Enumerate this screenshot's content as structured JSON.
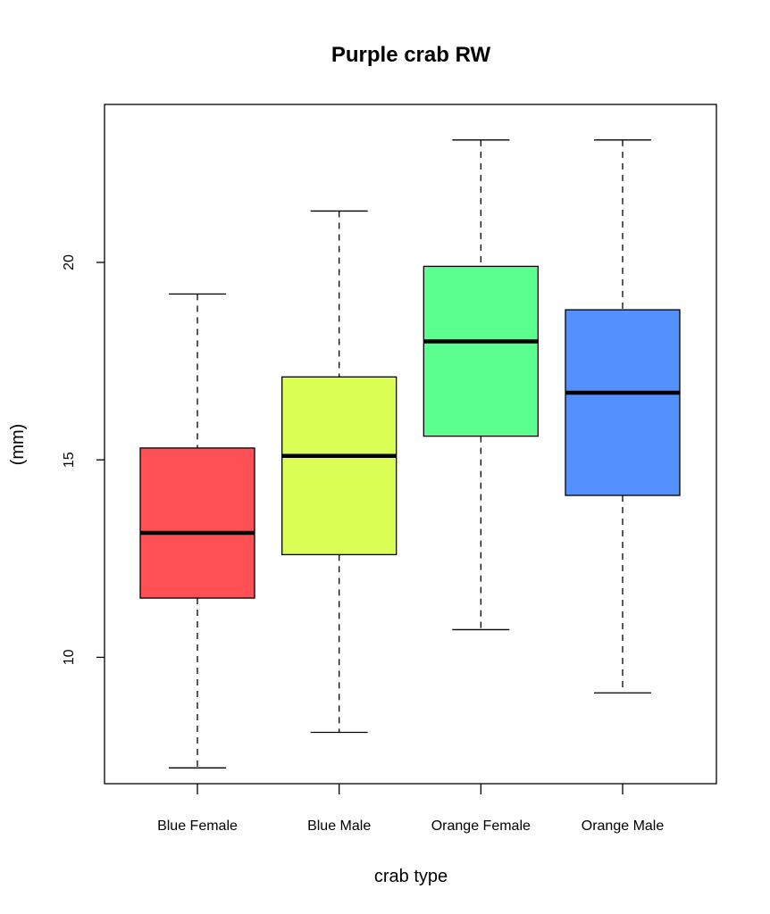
{
  "chart_data": {
    "type": "boxplot",
    "title": "Purple crab RW",
    "xlabel": "crab type",
    "ylabel": "(mm)",
    "ylim": [
      6.8,
      24
    ],
    "yticks": [
      10,
      15,
      20
    ],
    "grid": false,
    "categories": [
      "Blue Female",
      "Blue Male",
      "Orange Female",
      "Orange Male"
    ],
    "boxes": [
      {
        "category": "Blue Female",
        "min": 7.2,
        "q1": 11.5,
        "median": 13.15,
        "q3": 15.3,
        "max": 19.2,
        "color": "#FF5055"
      },
      {
        "category": "Blue Male",
        "min": 8.1,
        "q1": 12.6,
        "median": 15.1,
        "q3": 17.1,
        "max": 21.3,
        "color": "#DBFF55"
      },
      {
        "category": "Orange Female",
        "min": 10.7,
        "q1": 15.6,
        "median": 18.0,
        "q3": 19.9,
        "max": 23.1,
        "color": "#5BFF8E"
      },
      {
        "category": "Orange Male",
        "min": 9.1,
        "q1": 14.1,
        "median": 16.7,
        "q3": 18.8,
        "max": 23.1,
        "color": "#5590FF"
      }
    ]
  }
}
